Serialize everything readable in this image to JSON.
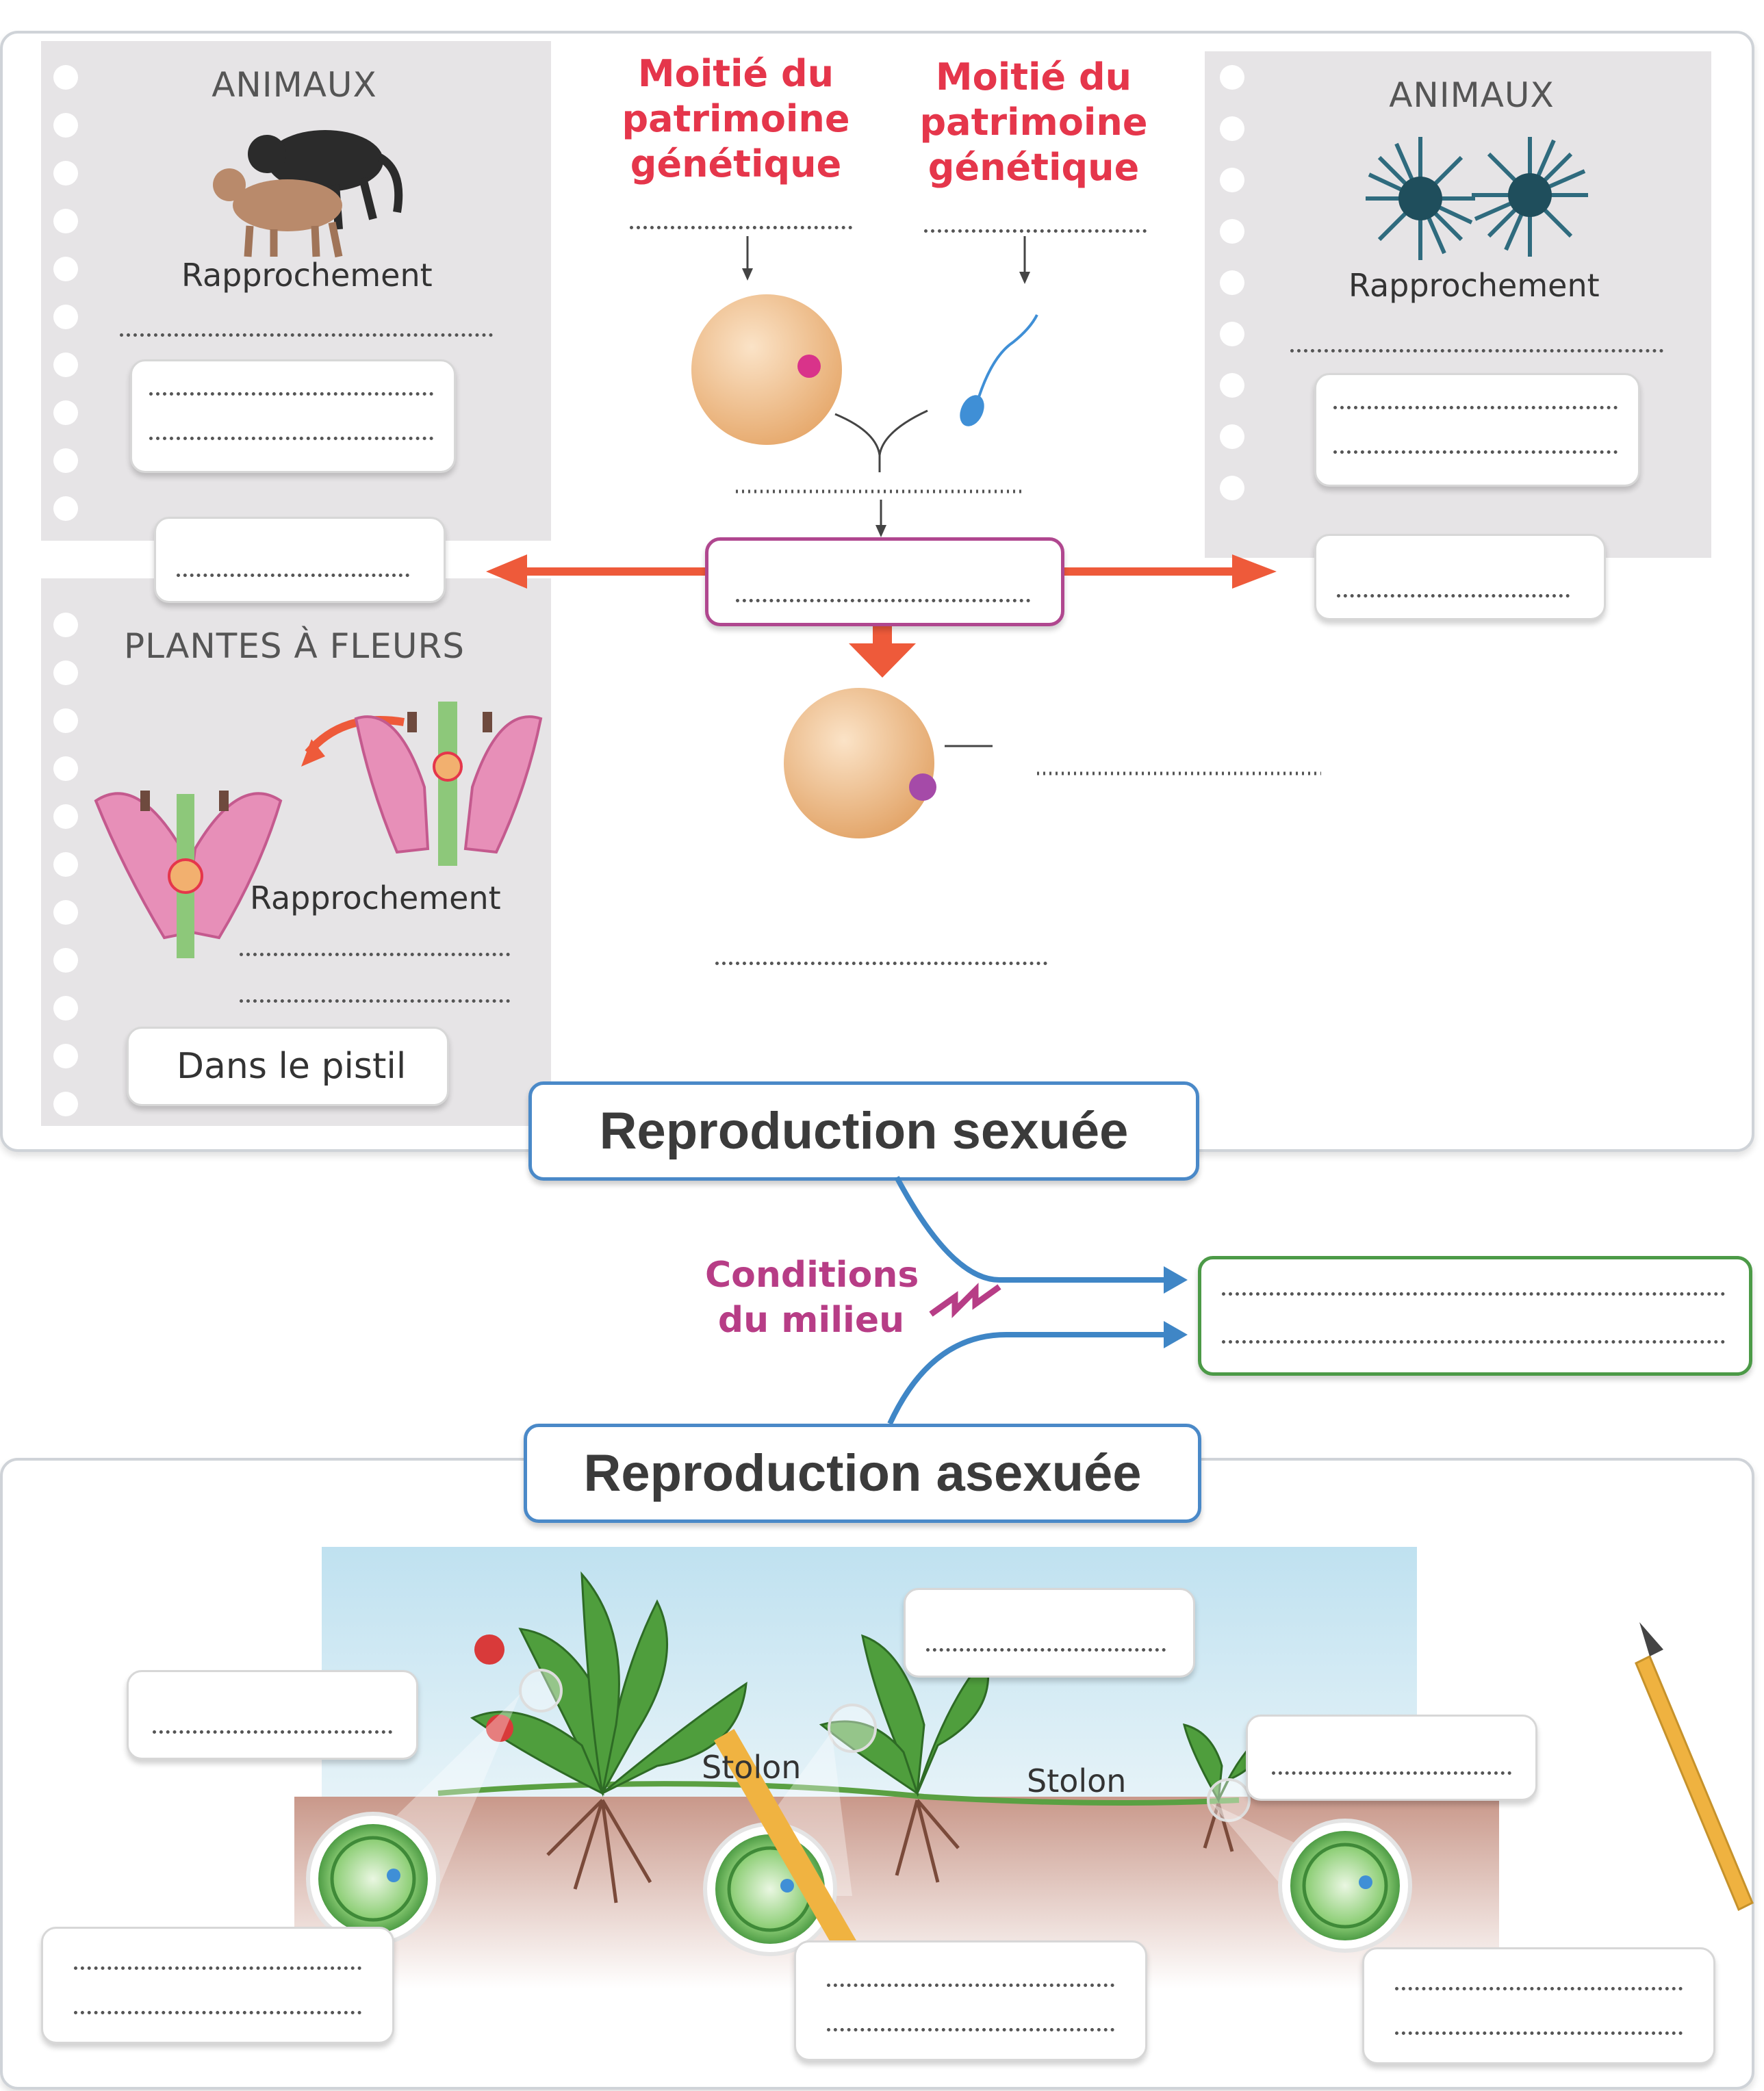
{
  "animals_left": {
    "title": "ANIMAUX",
    "approach_label": "Rapprochement"
  },
  "animals_right": {
    "title": "ANIMAUX",
    "approach_label": "Rapprochement"
  },
  "plants": {
    "title": "PLANTES À FLEURS",
    "approach_label": "Rapprochement",
    "location": "Dans le pistil"
  },
  "gamete_left": {
    "title": "Moitié du patrimoine génétique"
  },
  "gamete_right": {
    "title": "Moitié du patrimoine génétique"
  },
  "sexual": {
    "title": "Reproduction sexuée"
  },
  "asexual": {
    "title": "Reproduction asexuée"
  },
  "environment": {
    "label": "Conditions du milieu"
  },
  "strawberry": {
    "stolon_1": "Stolon",
    "stolon_2": "Stolon"
  },
  "colors": {
    "red": "#e5364b",
    "orange_arrow": "#ee5a3a",
    "blue_arrow": "#3f86c6",
    "purple_box": "#b0478f",
    "green_box": "#4c9a47",
    "egg": "#f0c08e",
    "green_cell": "#7cc36b"
  }
}
